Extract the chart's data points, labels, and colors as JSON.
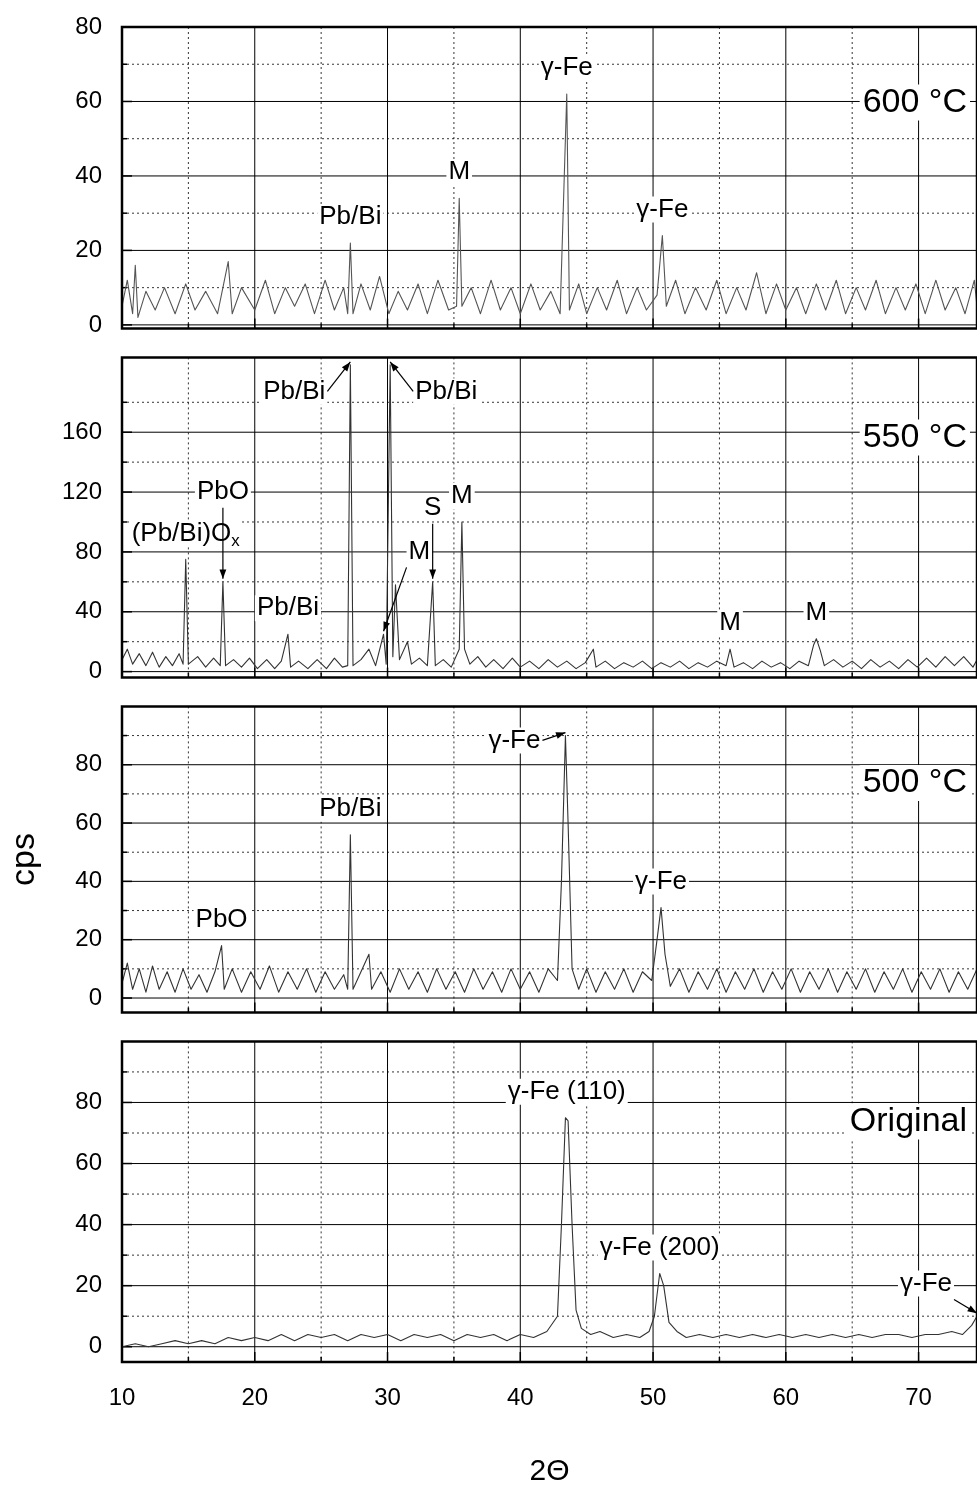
{
  "chart_data": [
    {
      "type": "line",
      "x": [
        10,
        10.4,
        10.8,
        11.0,
        11.2,
        11.8,
        12.5,
        13.2,
        14,
        14.8,
        15.5,
        16.3,
        17.2,
        18.0,
        18.3,
        19,
        20,
        20.8,
        21.5,
        22.3,
        23,
        23.8,
        24.5,
        25.3,
        26,
        26.7,
        27.0,
        27.2,
        27.4,
        28,
        28.7,
        29.4,
        30.1,
        30.8,
        31.5,
        32.3,
        33,
        33.8,
        34.6,
        35.2,
        35.4,
        35.6,
        36.3,
        37,
        37.8,
        38.5,
        39.3,
        40,
        40.8,
        41.5,
        42.3,
        43.0,
        43.5,
        43.7,
        44.4,
        45,
        45.8,
        46.5,
        47.3,
        48,
        48.8,
        49.5,
        50.3,
        50.7,
        51.0,
        51.7,
        52.4,
        53.2,
        54,
        54.8,
        55.5,
        56.3,
        57,
        57.8,
        58.5,
        59.3,
        60,
        60.8,
        61.5,
        62.3,
        63,
        63.8,
        64.5,
        65.3,
        66,
        66.8,
        67.5,
        68.3,
        69,
        69.8,
        70.5,
        71.3,
        72,
        72.8,
        73.5,
        74.2,
        74.4
      ],
      "series": [
        {
          "color": "#555555",
          "values": [
            5,
            12,
            3,
            16,
            2,
            9,
            4,
            10,
            3,
            11,
            4,
            9,
            3,
            17,
            3,
            10,
            4,
            12,
            3,
            10,
            5,
            11,
            3,
            12,
            4,
            10,
            3,
            22,
            3,
            11,
            4,
            13,
            3,
            9,
            4,
            11,
            3,
            12,
            4,
            5,
            34,
            5,
            10,
            3,
            12,
            4,
            10,
            3,
            11,
            4,
            9,
            3,
            62,
            4,
            11,
            3,
            10,
            4,
            12,
            3,
            10,
            4,
            8,
            24,
            5,
            12,
            3,
            10,
            4,
            12,
            3,
            10,
            4,
            14,
            3,
            11,
            4,
            10,
            3,
            11,
            4,
            12,
            3,
            10,
            4,
            12,
            3,
            10,
            4,
            11,
            3,
            12,
            4,
            10,
            3,
            12,
            5
          ]
        }
      ],
      "xlim": [
        10,
        74.4
      ],
      "ylim": [
        -1,
        80
      ],
      "xticks": [
        10,
        {
          "value": 15,
          "label": null
        },
        20,
        {
          "value": 25,
          "label": null
        },
        30,
        {
          "value": 35,
          "label": null
        },
        40,
        {
          "value": 45,
          "label": null
        },
        50,
        {
          "value": 55,
          "label": null
        },
        60,
        {
          "value": 65,
          "label": null
        },
        70
      ],
      "yticks": [
        0,
        {
          "value": 10,
          "label": null
        },
        20,
        {
          "value": 30,
          "label": null
        },
        40,
        {
          "value": 50,
          "label": null
        },
        60,
        {
          "value": 70,
          "label": null
        },
        80
      ],
      "grid": true,
      "tick_labels": "y",
      "annotations": [
        "600 °C",
        {
          "text": "Pb/Bi",
          "x": 27.2,
          "y": 22
        },
        {
          "text": "M",
          "x": 35.4,
          "y": 34
        },
        {
          "text": "γ-Fe",
          "x": 43.5,
          "y": 62
        },
        {
          "text": "γ-Fe",
          "x": 50.7,
          "y": 24
        }
      ]
    },
    {
      "type": "line",
      "x": [
        10,
        10.4,
        10.8,
        11.3,
        11.8,
        12.3,
        12.8,
        13.3,
        13.8,
        14.3,
        14.6,
        14.8,
        15.0,
        15.7,
        16.3,
        16.9,
        17.4,
        17.6,
        17.8,
        18.4,
        19,
        19.6,
        20.2,
        20.9,
        21.5,
        22.0,
        22.5,
        22.7,
        23.3,
        24,
        24.7,
        25.4,
        26,
        26.6,
        27.0,
        27.2,
        27.4,
        28,
        28.6,
        29.1,
        29.7,
        29.9,
        30.2,
        30.4,
        30.6,
        30.9,
        31.5,
        31.8,
        32.4,
        33.0,
        33.4,
        33.6,
        34.2,
        34.8,
        35.4,
        35.6,
        35.8,
        36.2,
        36.8,
        37.4,
        38,
        38.7,
        39.4,
        40,
        40.7,
        41.4,
        42.1,
        42.8,
        43.5,
        44.2,
        44.9,
        45.5,
        45.7,
        46.4,
        47.1,
        47.8,
        48.5,
        49.2,
        49.9,
        50.6,
        51.3,
        52,
        52.7,
        53.4,
        54.1,
        54.8,
        55.5,
        55.8,
        56.1,
        56.8,
        57.5,
        58.2,
        58.9,
        59.6,
        60.3,
        61,
        61.7,
        62.1,
        62.3,
        62.6,
        62.9,
        63.6,
        64.3,
        65,
        65.7,
        66.4,
        67.1,
        67.8,
        68.5,
        69.2,
        69.9,
        70.6,
        71.3,
        72,
        72.7,
        73.4,
        74.1,
        74.4
      ],
      "series": [
        {
          "color": "#333333",
          "values": [
            8,
            15,
            5,
            12,
            4,
            13,
            3,
            10,
            4,
            12,
            5,
            75,
            5,
            10,
            3,
            9,
            4,
            60,
            4,
            8,
            3,
            9,
            2,
            8,
            2,
            7,
            25,
            3,
            7,
            2,
            8,
            2,
            9,
            3,
            4,
            205,
            4,
            8,
            15,
            4,
            25,
            5,
            205,
            10,
            58,
            8,
            20,
            5,
            9,
            4,
            60,
            4,
            8,
            3,
            15,
            100,
            15,
            5,
            10,
            3,
            8,
            2,
            9,
            3,
            7,
            2,
            8,
            3,
            7,
            2,
            6,
            15,
            3,
            7,
            2,
            6,
            3,
            7,
            2,
            6,
            3,
            7,
            2,
            6,
            3,
            7,
            4,
            15,
            3,
            6,
            2,
            7,
            3,
            6,
            2,
            7,
            4,
            18,
            22,
            14,
            4,
            8,
            3,
            7,
            2,
            8,
            3,
            7,
            2,
            8,
            3,
            9,
            3,
            10,
            4,
            10,
            3,
            8
          ]
        }
      ],
      "xlim": [
        10,
        74.4
      ],
      "ylim": [
        -4,
        210
      ],
      "xticks": [
        10,
        {
          "value": 15,
          "label": null
        },
        20,
        {
          "value": 25,
          "label": null
        },
        30,
        {
          "value": 35,
          "label": null
        },
        40,
        {
          "value": 45,
          "label": null
        },
        50,
        {
          "value": 55,
          "label": null
        },
        60,
        {
          "value": 65,
          "label": null
        },
        70
      ],
      "yticks": [
        0,
        {
          "value": 20,
          "label": null
        },
        40,
        {
          "value": 60,
          "label": null
        },
        80,
        {
          "value": 100,
          "label": null
        },
        120,
        {
          "value": 140,
          "label": null
        },
        160,
        {
          "value": 180,
          "label": null
        }
      ],
      "grid": true,
      "tick_labels": "y",
      "annotations": [
        "550 °C",
        {
          "text": "(Pb/Bi)O$_{x}$",
          "x": 14.8,
          "y": 75
        },
        {
          "text": "PbO",
          "x": 17.6,
          "y": 60
        },
        {
          "text": "Pb/Bi",
          "x": 22.5,
          "y": 25
        },
        {
          "text": "Pb/Bi",
          "x": 27.2,
          "y": 205
        },
        {
          "text": "M",
          "x": 29.7,
          "y": 25
        },
        {
          "text": "Pb/Bi",
          "x": 30.2,
          "y": 205
        },
        {
          "text": "S",
          "x": 33.4,
          "y": 60
        },
        {
          "text": "M",
          "x": 35.6,
          "y": 100
        },
        {
          "text": "M",
          "x": 55.8,
          "y": 15
        },
        {
          "text": "M",
          "x": 62.3,
          "y": 22
        }
      ]
    },
    {
      "type": "line",
      "x": [
        10,
        10.4,
        10.8,
        11.3,
        11.8,
        12.3,
        12.8,
        13.4,
        14,
        14.6,
        15.2,
        15.8,
        16.4,
        17.0,
        17.5,
        17.7,
        18.3,
        19,
        19.7,
        20.4,
        21.1,
        21.8,
        22.5,
        23.2,
        23.9,
        24.6,
        25.3,
        26,
        26.7,
        27.0,
        27.2,
        27.4,
        28,
        28.6,
        28.8,
        29.5,
        30.2,
        30.9,
        31.6,
        32.3,
        33,
        33.7,
        34.4,
        35.1,
        35.8,
        36.5,
        37.2,
        37.9,
        38.6,
        39.3,
        40,
        40.7,
        41.4,
        42.1,
        42.8,
        43.1,
        43.4,
        43.6,
        43.9,
        44.4,
        45,
        45.7,
        46.4,
        47.1,
        47.8,
        48.5,
        49.2,
        49.9,
        50.3,
        50.6,
        50.9,
        51.3,
        52,
        52.7,
        53.4,
        54.1,
        54.8,
        55.5,
        56.2,
        56.9,
        57.6,
        58.3,
        59,
        59.7,
        60.4,
        61.1,
        61.8,
        62.5,
        63.2,
        63.9,
        64.6,
        65.3,
        66,
        66.7,
        67.4,
        68.1,
        68.8,
        69.5,
        70.2,
        70.9,
        71.6,
        72.3,
        73,
        73.7,
        74.4
      ],
      "series": [
        {
          "color": "#333333",
          "values": [
            5,
            12,
            3,
            10,
            2,
            11,
            3,
            9,
            2,
            10,
            3,
            8,
            2,
            9,
            18,
            3,
            10,
            2,
            9,
            3,
            11,
            2,
            9,
            3,
            10,
            2,
            9,
            3,
            8,
            3,
            56,
            3,
            9,
            15,
            3,
            9,
            2,
            10,
            3,
            9,
            2,
            10,
            3,
            9,
            2,
            10,
            3,
            9,
            2,
            10,
            3,
            9,
            2,
            10,
            6,
            40,
            90,
            60,
            10,
            3,
            10,
            2,
            9,
            3,
            10,
            2,
            9,
            6,
            20,
            31,
            15,
            4,
            10,
            2,
            9,
            3,
            10,
            2,
            9,
            3,
            10,
            2,
            9,
            3,
            10,
            2,
            9,
            3,
            10,
            2,
            9,
            3,
            10,
            2,
            9,
            3,
            10,
            2,
            9,
            3,
            10,
            2,
            9,
            3,
            10
          ]
        }
      ],
      "xlim": [
        10,
        74.4
      ],
      "ylim": [
        -5,
        100
      ],
      "xticks": [
        10,
        {
          "value": 15,
          "label": null
        },
        20,
        {
          "value": 25,
          "label": null
        },
        30,
        {
          "value": 35,
          "label": null
        },
        40,
        {
          "value": 45,
          "label": null
        },
        50,
        {
          "value": 55,
          "label": null
        },
        60,
        {
          "value": 65,
          "label": null
        },
        70
      ],
      "yticks": [
        0,
        {
          "value": 10,
          "label": null
        },
        20,
        {
          "value": 30,
          "label": null
        },
        40,
        {
          "value": 50,
          "label": null
        },
        60,
        {
          "value": 70,
          "label": null
        },
        80,
        {
          "value": 90,
          "label": null
        }
      ],
      "grid": true,
      "tick_labels": "y",
      "ylabel": "cps",
      "annotations": [
        "500 °C",
        {
          "text": "PbO",
          "x": 17.5,
          "y": 18
        },
        {
          "text": "Pb/Bi",
          "x": 27.2,
          "y": 56
        },
        {
          "text": "γ-Fe",
          "x": 43.4,
          "y": 90
        },
        {
          "text": "γ-Fe",
          "x": 50.6,
          "y": 31
        }
      ]
    },
    {
      "type": "line",
      "x": [
        10,
        11,
        12,
        13,
        14,
        15,
        16,
        17,
        18,
        19,
        20,
        21,
        22,
        23,
        24,
        25,
        26,
        27,
        28,
        29,
        30,
        31,
        32,
        33,
        34,
        35,
        36,
        37,
        38,
        39,
        40,
        41,
        42,
        42.8,
        43.1,
        43.4,
        43.6,
        43.9,
        44.2,
        44.6,
        45.3,
        46,
        47,
        48,
        49,
        49.7,
        50.1,
        50.5,
        50.8,
        51.2,
        51.8,
        52.5,
        53.5,
        54.5,
        55.5,
        56.5,
        57.5,
        58.5,
        59.5,
        60.5,
        61.5,
        62.5,
        63.5,
        64.5,
        65.5,
        66.5,
        67.5,
        68.5,
        69.5,
        70.5,
        71.5,
        72.5,
        73.3,
        74,
        74.4
      ],
      "series": [
        {
          "color": "#333333",
          "values": [
            0,
            1,
            0,
            1,
            2,
            1,
            2,
            1,
            3,
            2,
            3,
            2,
            4,
            2,
            4,
            3,
            4,
            2,
            4,
            3,
            4,
            2,
            4,
            3,
            4,
            2,
            4,
            3,
            4,
            2,
            4,
            3,
            5,
            10,
            40,
            75,
            74,
            40,
            12,
            6,
            4,
            5,
            3,
            4,
            3,
            5,
            10,
            24,
            20,
            8,
            5,
            3,
            4,
            3,
            4,
            3,
            4,
            3,
            4,
            3,
            4,
            3,
            4,
            3,
            4,
            3,
            4,
            4,
            3,
            4,
            4,
            5,
            4,
            7,
            10
          ]
        }
      ],
      "xlim": [
        10,
        74.4
      ],
      "ylim": [
        -5,
        100
      ],
      "xticks": [
        10,
        {
          "value": 15,
          "label": null
        },
        20,
        {
          "value": 25,
          "label": null
        },
        30,
        {
          "value": 35,
          "label": null
        },
        40,
        {
          "value": 45,
          "label": null
        },
        50,
        {
          "value": 55,
          "label": null
        },
        60,
        {
          "value": 65,
          "label": null
        },
        70
      ],
      "yticks": [
        0,
        {
          "value": 10,
          "label": null
        },
        20,
        {
          "value": 30,
          "label": null
        },
        40,
        {
          "value": 50,
          "label": null
        },
        60,
        {
          "value": 70,
          "label": null
        },
        80,
        {
          "value": 90,
          "label": null
        }
      ],
      "grid": true,
      "xlabel": "2Θ",
      "annotations": [
        "Original",
        {
          "text": "γ-Fe (110)",
          "x": 43.5,
          "y": 75
        },
        {
          "text": "γ-Fe (200)",
          "x": 50.5,
          "y": 24
        },
        {
          "text": "γ-Fe",
          "x": 74.4,
          "y": 10
        }
      ]
    }
  ]
}
